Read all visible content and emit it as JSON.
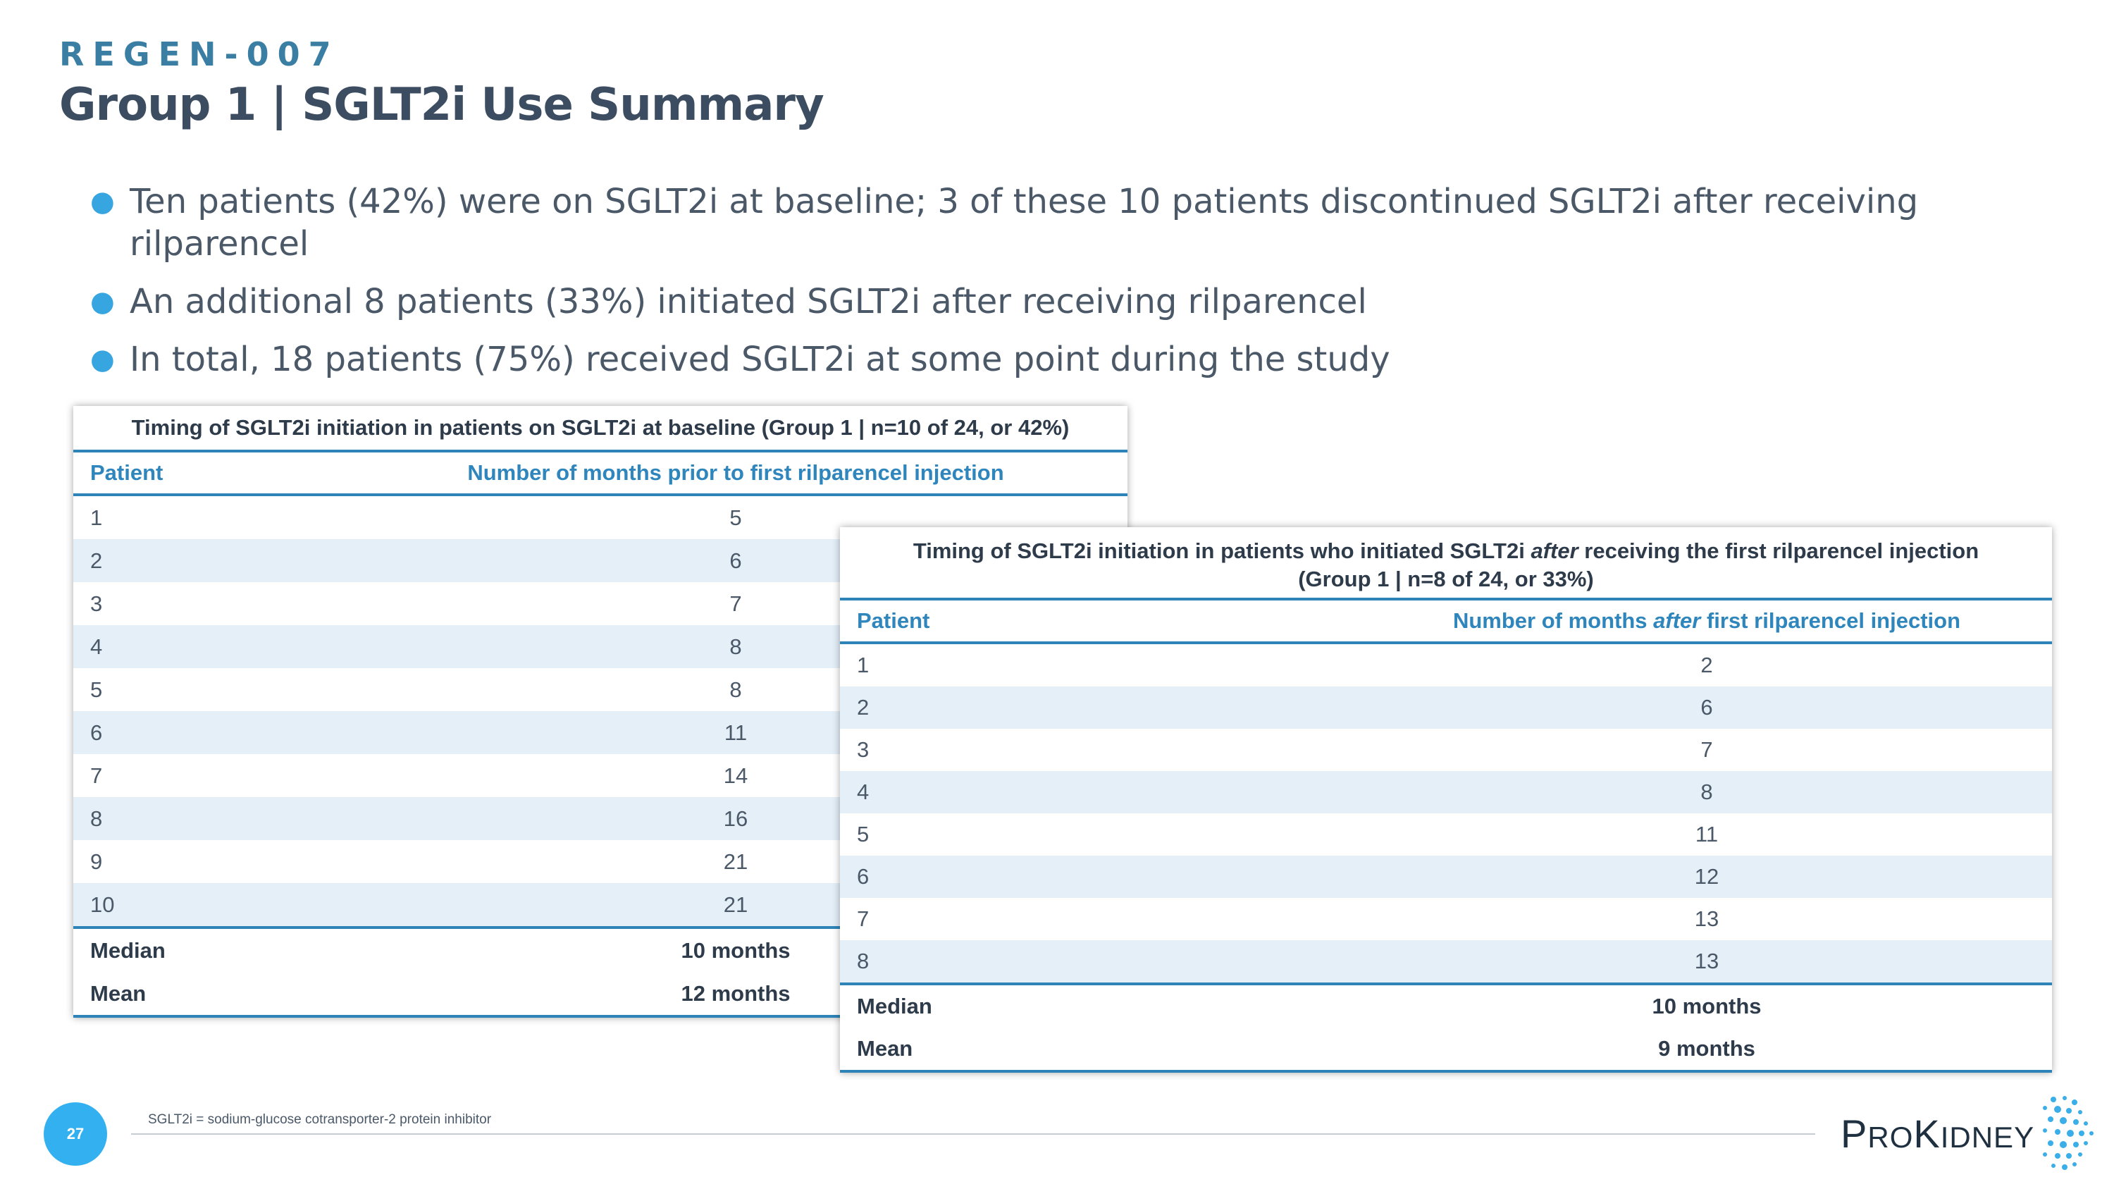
{
  "header": {
    "eyebrow": "REGEN-007",
    "title": "Group 1 | SGLT2i Use Summary"
  },
  "bullets": [
    "Ten patients (42%) were on SGLT2i at baseline; 3 of these 10 patients discontinued SGLT2i after receiving rilparencel",
    "An additional 8 patients (33%) initiated SGLT2i after receiving rilparencel",
    "In total, 18 patients (75%) received SGLT2i at some point during the study"
  ],
  "table1": {
    "caption": "Timing of SGLT2i initiation in patients on SGLT2i at baseline (Group 1 | n=10 of 24, or 42%)",
    "col1": "Patient",
    "col2": "Number of months prior to first rilparencel injection",
    "rows": [
      [
        "1",
        "5"
      ],
      [
        "2",
        "6"
      ],
      [
        "3",
        "7"
      ],
      [
        "4",
        "8"
      ],
      [
        "5",
        "8"
      ],
      [
        "6",
        "11"
      ],
      [
        "7",
        "14"
      ],
      [
        "8",
        "16"
      ],
      [
        "9",
        "21"
      ],
      [
        "10",
        "21"
      ]
    ],
    "median_label": "Median",
    "median_value": "10 months",
    "mean_label": "Mean",
    "mean_value": "12 months"
  },
  "table2": {
    "caption_line1_pre": "Timing of SGLT2i initiation in patients who initiated SGLT2i ",
    "caption_line1_em": "after",
    "caption_line1_post": " receiving the first rilparencel injection",
    "caption_line2": "(Group 1 | n=8 of 24, or 33%)",
    "col1": "Patient",
    "col2_pre": "Number of months ",
    "col2_em": "after",
    "col2_post": " first rilparencel injection",
    "rows": [
      [
        "1",
        "2"
      ],
      [
        "2",
        "6"
      ],
      [
        "3",
        "7"
      ],
      [
        "4",
        "8"
      ],
      [
        "5",
        "11"
      ],
      [
        "6",
        "12"
      ],
      [
        "7",
        "13"
      ],
      [
        "8",
        "13"
      ]
    ],
    "median_label": "Median",
    "median_value": "10 months",
    "mean_label": "Mean",
    "mean_value": "9 months"
  },
  "footer": {
    "footnote": "SGLT2i = sodium-glucose cotransporter-2 protein inhibitor",
    "page_number": "27",
    "logo_p": "P",
    "logo_ro": "RO",
    "logo_k": "K",
    "logo_idney": "IDNEY"
  },
  "colors": {
    "accent": "#2e84b7",
    "eyebrow": "#3a7fa3",
    "bullet": "#37a6e0",
    "row_alt": "#e4eff8",
    "page_badge": "#32b0f0"
  },
  "icons": {
    "bullet": "bullet-dot-icon",
    "logo": "prokidney-dots-icon"
  }
}
